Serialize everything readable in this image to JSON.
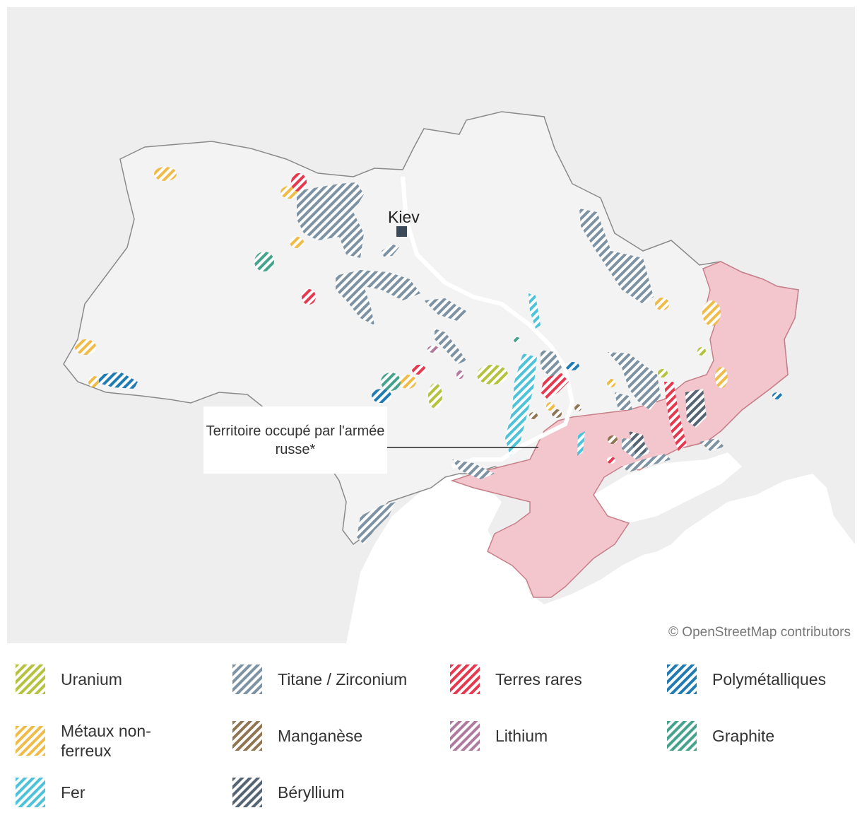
{
  "map": {
    "city": "Kiev",
    "annotation": "Territoire occupé par l'armée russe*",
    "attribution": "© OpenStreetMap contributors"
  },
  "legend": [
    {
      "label": "Uranium",
      "color": "#b5c23d"
    },
    {
      "label": "Titane / Zirconium",
      "color": "#7d92a3"
    },
    {
      "label": "Terres rares",
      "color": "#e63950"
    },
    {
      "label": "Polymétalliques",
      "color": "#1f7bb3"
    },
    {
      "label": "Métaux non-ferreux",
      "color": "#f0bb46"
    },
    {
      "label": "Manganèse",
      "color": "#8f7552"
    },
    {
      "label": "Lithium",
      "color": "#b07a9e"
    },
    {
      "label": "Graphite",
      "color": "#44a38c"
    },
    {
      "label": "Fer",
      "color": "#4cc3d9"
    },
    {
      "label": "Béryllium",
      "color": "#556472"
    }
  ],
  "colors": {
    "occupied_fill": "#f2c6cc",
    "occupied_border": "#c77f8a",
    "land": "#eeeeee",
    "ukraine": "#f3f3f3",
    "sea": "#ffffff"
  }
}
